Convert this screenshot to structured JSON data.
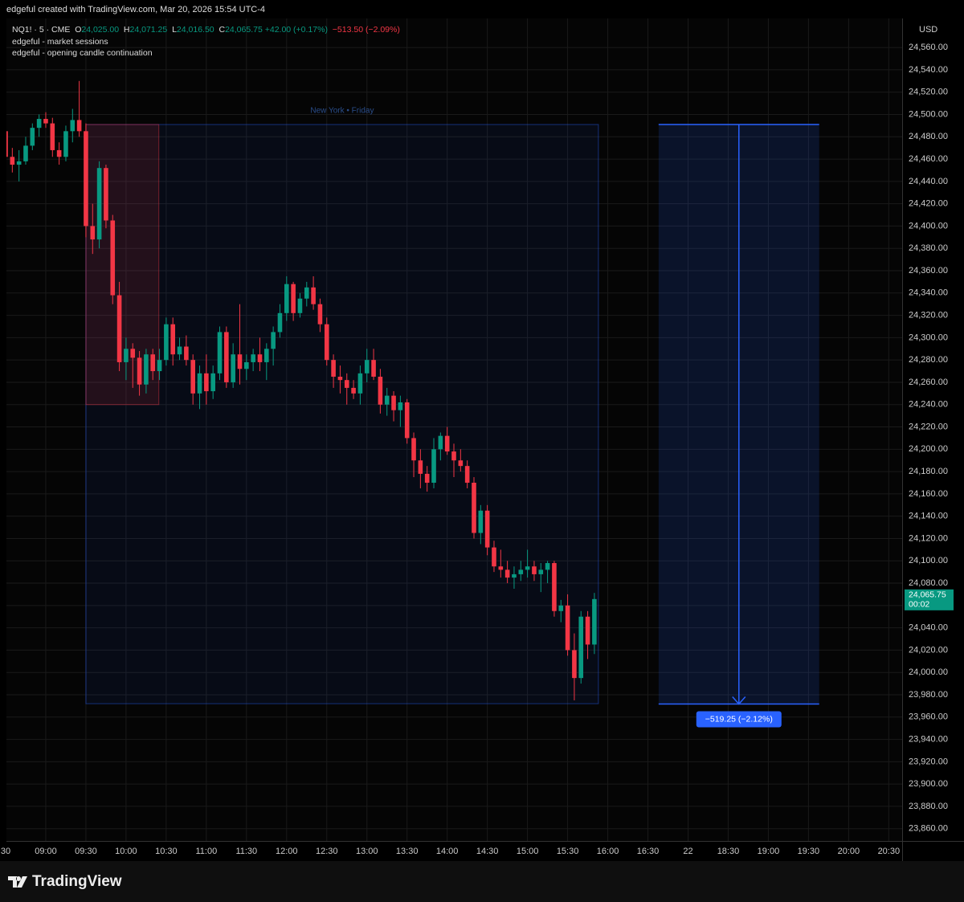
{
  "header": "edgeful created with TradingView.com, Mar 20, 2026 15:54 UTC-4",
  "legend": {
    "symbol": "NQ1! · 5 · CME",
    "o_label": "O",
    "o": "24,025.00",
    "h_label": "H",
    "h": "24,071.25",
    "l_label": "L",
    "l": "24,016.50",
    "c_label": "C",
    "c": "24,065.75",
    "change": "+42.00 (+0.17%)",
    "day_change": "−513.50 (−2.09%)",
    "indicators": [
      "edgeful - market sessions",
      "edgeful - opening candle continuation"
    ]
  },
  "currency": "USD",
  "footer": "TradingView",
  "chart_data": {
    "type": "candlestick",
    "up_color": "#089981",
    "down_color": "#f23645",
    "grid": true,
    "x": [
      0,
      1,
      2,
      3,
      4,
      5,
      6,
      7,
      8,
      9,
      10,
      11,
      12,
      13,
      14,
      15,
      16,
      17,
      18,
      19,
      20,
      21,
      22,
      23,
      24,
      25,
      26,
      27,
      28,
      29,
      30,
      31,
      32,
      33,
      34,
      35,
      36,
      37,
      38,
      39,
      40,
      41,
      42,
      43,
      44,
      45,
      46,
      47,
      48,
      49,
      50,
      51,
      52,
      53,
      54,
      55,
      56,
      57,
      58,
      59,
      60,
      61,
      62,
      63,
      64,
      65,
      66,
      67,
      68,
      69,
      70,
      71,
      72,
      73,
      74,
      75,
      76,
      77,
      78,
      79,
      80,
      81,
      82,
      83,
      84,
      85,
      86,
      87,
      88
    ],
    "open": [
      24485,
      24462,
      24455,
      24458,
      24472,
      24488,
      24496,
      24492,
      24468,
      24462,
      24485,
      24495,
      24485,
      24400,
      24388,
      24452,
      24405,
      24338,
      24278,
      24290,
      24282,
      24258,
      24285,
      24270,
      24280,
      24312,
      24285,
      24292,
      24280,
      24250,
      24268,
      24252,
      24268,
      24305,
      24260,
      24285,
      24272,
      24278,
      24285,
      24278,
      24290,
      24305,
      24322,
      24348,
      24322,
      24335,
      24345,
      24330,
      24312,
      24280,
      24265,
      24262,
      24255,
      24250,
      24268,
      24280,
      24265,
      24240,
      24248,
      24235,
      24242,
      24210,
      24190,
      24178,
      24170,
      24200,
      24212,
      24198,
      24190,
      24185,
      24170,
      24125,
      24145,
      24112,
      24095,
      24092,
      24085,
      24088,
      24092,
      24095,
      24088,
      24092,
      24098,
      24055,
      24060,
      24020,
      23995,
      24050,
      24025
    ],
    "high": [
      24490,
      24470,
      24468,
      24480,
      24492,
      24500,
      24502,
      24497,
      24475,
      24490,
      24505,
      24530,
      24492,
      24420,
      24458,
      24455,
      24410,
      24350,
      24300,
      24295,
      24288,
      24290,
      24290,
      24290,
      24318,
      24318,
      24300,
      24302,
      24285,
      24275,
      24285,
      24275,
      24310,
      24310,
      24295,
      24330,
      24285,
      24290,
      24300,
      24295,
      24310,
      24330,
      24355,
      24350,
      24340,
      24350,
      24355,
      24335,
      24318,
      24285,
      24275,
      24268,
      24262,
      24275,
      24290,
      24290,
      24272,
      24255,
      24252,
      24248,
      24245,
      24215,
      24200,
      24185,
      24210,
      24215,
      24220,
      24205,
      24200,
      24190,
      24175,
      24150,
      24150,
      24118,
      24110,
      24100,
      24095,
      24100,
      24110,
      24100,
      24098,
      24100,
      24100,
      24065,
      24070,
      24035,
      24055,
      24055,
      24071.25
    ],
    "low": [
      24455,
      24448,
      24440,
      24455,
      24468,
      24480,
      24488,
      24462,
      24455,
      24458,
      24475,
      24480,
      24390,
      24375,
      24380,
      24398,
      24330,
      24270,
      24262,
      24255,
      24248,
      24250,
      24262,
      24262,
      24275,
      24275,
      24280,
      24275,
      24240,
      24236,
      24240,
      24245,
      24262,
      24255,
      24255,
      24258,
      24262,
      24270,
      24270,
      24262,
      24275,
      24300,
      24315,
      24315,
      24318,
      24328,
      24325,
      24305,
      24275,
      24255,
      24250,
      24240,
      24245,
      24240,
      24260,
      24262,
      24232,
      24230,
      24225,
      24220,
      24205,
      24175,
      24165,
      24162,
      24165,
      24190,
      24195,
      24175,
      24180,
      24165,
      24120,
      24115,
      24105,
      24090,
      24085,
      24080,
      24075,
      24082,
      24085,
      24082,
      24072,
      24080,
      24050,
      24045,
      24015,
      23975,
      23990,
      24012,
      24016.5
    ],
    "close": [
      24462,
      24455,
      24458,
      24472,
      24488,
      24496,
      24492,
      24468,
      24462,
      24485,
      24495,
      24485,
      24400,
      24388,
      24452,
      24405,
      24338,
      24278,
      24290,
      24282,
      24258,
      24285,
      24270,
      24280,
      24312,
      24285,
      24292,
      24280,
      24250,
      24268,
      24252,
      24268,
      24305,
      24260,
      24285,
      24272,
      24278,
      24285,
      24278,
      24290,
      24305,
      24322,
      24348,
      24322,
      24335,
      24345,
      24330,
      24312,
      24280,
      24265,
      24262,
      24255,
      24250,
      24268,
      24280,
      24265,
      24240,
      24248,
      24235,
      24242,
      24210,
      24190,
      24178,
      24170,
      24200,
      24212,
      24198,
      24190,
      24185,
      24170,
      24125,
      24145,
      24112,
      24095,
      24092,
      24085,
      24088,
      24092,
      24095,
      24088,
      24092,
      24098,
      24055,
      24060,
      24020,
      23995,
      24050,
      24025,
      24065.75
    ],
    "xlim": [
      0,
      134
    ],
    "xticks": [
      {
        "value": 0,
        "label": "30"
      },
      {
        "value": 6,
        "label": "09:00"
      },
      {
        "value": 12,
        "label": "09:30"
      },
      {
        "value": 18,
        "label": "10:00"
      },
      {
        "value": 24,
        "label": "10:30"
      },
      {
        "value": 30,
        "label": "11:00"
      },
      {
        "value": 36,
        "label": "11:30"
      },
      {
        "value": 42,
        "label": "12:00"
      },
      {
        "value": 48,
        "label": "12:30"
      },
      {
        "value": 54,
        "label": "13:00"
      },
      {
        "value": 60,
        "label": "13:30"
      },
      {
        "value": 66,
        "label": "14:00"
      },
      {
        "value": 72,
        "label": "14:30"
      },
      {
        "value": 78,
        "label": "15:00"
      },
      {
        "value": 84,
        "label": "15:30"
      },
      {
        "value": 90,
        "label": "16:00"
      },
      {
        "value": 96,
        "label": "16:30"
      },
      {
        "value": 102,
        "label": "22"
      },
      {
        "value": 108,
        "label": "18:30"
      },
      {
        "value": 114,
        "label": "19:00"
      },
      {
        "value": 120,
        "label": "19:30"
      },
      {
        "value": 126,
        "label": "20:00"
      },
      {
        "value": 132,
        "label": "20:30"
      }
    ],
    "ylim": [
      23849,
      24586
    ],
    "yticks": [
      {
        "value": 23860,
        "label": "23,860.00"
      },
      {
        "value": 23880,
        "label": "23,880.00"
      },
      {
        "value": 23900,
        "label": "23,900.00"
      },
      {
        "value": 23920,
        "label": "23,920.00"
      },
      {
        "value": 23940,
        "label": "23,940.00"
      },
      {
        "value": 23960,
        "label": "23,960.00"
      },
      {
        "value": 23980,
        "label": "23,980.00"
      },
      {
        "value": 24000,
        "label": "24,000.00"
      },
      {
        "value": 24020,
        "label": "24,020.00"
      },
      {
        "value": 24040,
        "label": "24,040.00"
      },
      {
        "value": 24060,
        "label": "24,060.00"
      },
      {
        "value": 24080,
        "label": "24,080.00"
      },
      {
        "value": 24100,
        "label": "24,100.00"
      },
      {
        "value": 24120,
        "label": "24,120.00"
      },
      {
        "value": 24140,
        "label": "24,140.00"
      },
      {
        "value": 24160,
        "label": "24,160.00"
      },
      {
        "value": 24180,
        "label": "24,180.00"
      },
      {
        "value": 24200,
        "label": "24,200.00"
      },
      {
        "value": 24220,
        "label": "24,220.00"
      },
      {
        "value": 24240,
        "label": "24,240.00"
      },
      {
        "value": 24260,
        "label": "24,260.00"
      },
      {
        "value": 24280,
        "label": "24,280.00"
      },
      {
        "value": 24300,
        "label": "24,300.00"
      },
      {
        "value": 24320,
        "label": "24,320.00"
      },
      {
        "value": 24340,
        "label": "24,340.00"
      },
      {
        "value": 24360,
        "label": "24,360.00"
      },
      {
        "value": 24380,
        "label": "24,380.00"
      },
      {
        "value": 24400,
        "label": "24,400.00"
      },
      {
        "value": 24420,
        "label": "24,420.00"
      },
      {
        "value": 24440,
        "label": "24,440.00"
      },
      {
        "value": 24460,
        "label": "24,460.00"
      },
      {
        "value": 24480,
        "label": "24,480.00"
      },
      {
        "value": 24500,
        "label": "24,500.00"
      },
      {
        "value": 24520,
        "label": "24,520.00"
      },
      {
        "value": 24540,
        "label": "24,540.00"
      },
      {
        "value": 24560,
        "label": "24,560.00"
      }
    ],
    "session": {
      "label": "New York • Friday",
      "start": 12,
      "end": 88.6,
      "high": 24491,
      "low": 23972,
      "color": "#2962ff"
    },
    "opening_range": {
      "start": 12,
      "end": 22.9,
      "high": 24491,
      "low": 24240,
      "color": "#f23645"
    },
    "measure": {
      "start": 97.6,
      "end": 121.6,
      "high": 24491,
      "low": 23971.75,
      "label": "−519.25 (−2.12%)",
      "color": "#2962ff"
    },
    "last_price": {
      "value": 24065.75,
      "label": "24,065.75",
      "countdown": "00:02"
    }
  }
}
